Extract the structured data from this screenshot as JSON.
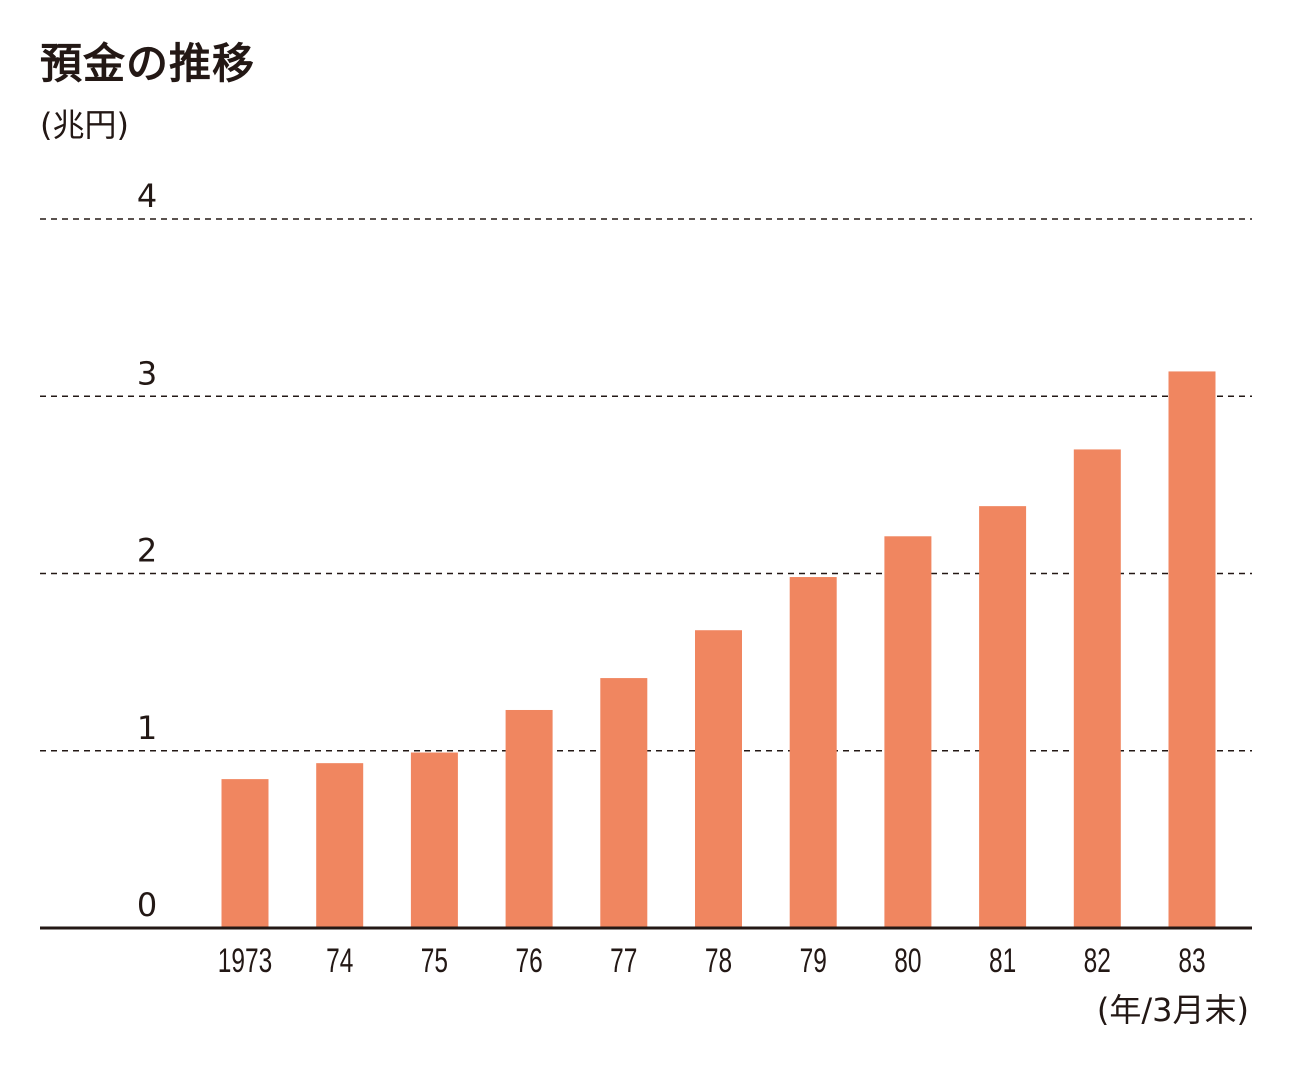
{
  "chart_data": {
    "type": "bar",
    "title": "預金の推移",
    "ylabel": "(兆円)",
    "xlabel": "(年/3月末)",
    "categories": [
      "1973",
      "74",
      "75",
      "76",
      "77",
      "78",
      "79",
      "80",
      "81",
      "82",
      "83"
    ],
    "values": [
      0.84,
      0.93,
      0.99,
      1.23,
      1.41,
      1.68,
      1.98,
      2.21,
      2.38,
      2.7,
      3.14
    ],
    "ylim": [
      0,
      4
    ],
    "yticks": [
      "0",
      "1",
      "2",
      "3",
      "4"
    ],
    "grid": true,
    "colors": {
      "bar": "#f08660",
      "axis": "#231815",
      "grid": "#231815",
      "text": "#231815"
    }
  }
}
